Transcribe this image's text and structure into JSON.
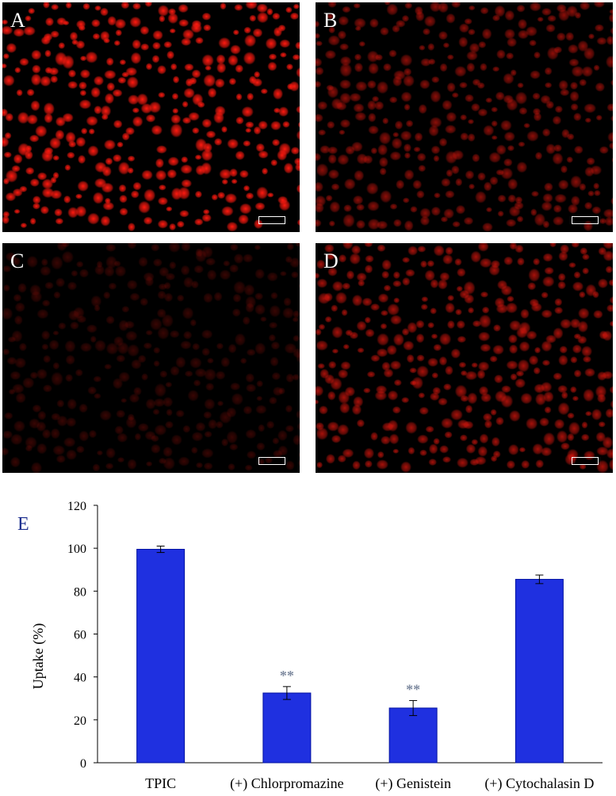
{
  "panels": [
    {
      "label": "A",
      "brightness": 1.0,
      "density": 1.0
    },
    {
      "label": "B",
      "brightness": 0.55,
      "density": 1.0
    },
    {
      "label": "C",
      "brightness": 0.22,
      "density": 0.9
    },
    {
      "label": "D",
      "brightness": 0.65,
      "density": 1.0
    }
  ],
  "colors": {
    "fluorescence": "#ff1a10",
    "bar": "#1f30e0",
    "bar_edge": "#0010a0",
    "significance": "#7f8ba0"
  },
  "chart_data": {
    "type": "bar",
    "panel_label": "E",
    "categories": [
      "TPIC",
      "(+) Chlorpromazine",
      "(+) Genistein",
      "(+) Cytochalasin D"
    ],
    "values": [
      99.5,
      32.5,
      25.5,
      85.5
    ],
    "errors": [
      1.5,
      3.0,
      3.5,
      2.0
    ],
    "annotations": [
      "",
      "**",
      "**",
      ""
    ],
    "ylabel": "Uptake (%)",
    "xlabel": "",
    "ylim": [
      0,
      120
    ],
    "yticks": [
      0,
      20,
      40,
      60,
      80,
      100,
      120
    ],
    "grid": false
  }
}
